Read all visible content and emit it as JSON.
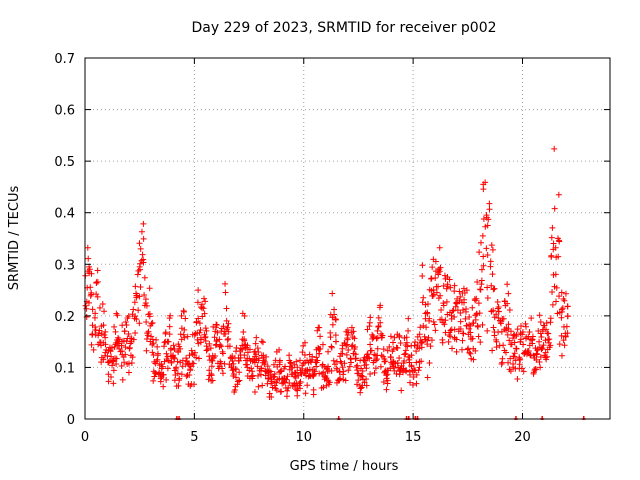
{
  "chart_data": {
    "type": "scatter",
    "title": "Day 229 of 2023, SRMTID for receiver p002",
    "xlabel": "GPS time / hours",
    "ylabel": "SRMTID / TECUs",
    "xlim": [
      0,
      24
    ],
    "ylim": [
      0,
      0.7
    ],
    "xticks": [
      0,
      5,
      10,
      15,
      20
    ],
    "yticks": [
      0,
      0.1,
      0.2,
      0.3,
      0.4,
      0.5,
      0.6,
      0.7
    ],
    "grid": true,
    "marker": "+",
    "color": "#ff0000",
    "x_step_hours": 0.1,
    "series": [
      {
        "name": "SRMTID p002",
        "values": [
          0.22,
          0.3,
          0.26,
          0.18,
          0.2,
          0.24,
          0.16,
          0.14,
          0.18,
          0.13,
          0.12,
          0.12,
          0.1,
          0.14,
          0.16,
          0.14,
          0.14,
          0.12,
          0.16,
          0.16,
          0.14,
          0.17,
          0.2,
          0.22,
          0.25,
          0.29,
          0.33,
          0.27,
          0.17,
          0.2,
          0.15,
          0.11,
          0.1,
          0.09,
          0.08,
          0.1,
          0.13,
          0.12,
          0.15,
          0.14,
          0.13,
          0.1,
          0.11,
          0.14,
          0.15,
          0.17,
          0.12,
          0.09,
          0.1,
          0.12,
          0.15,
          0.18,
          0.17,
          0.19,
          0.2,
          0.14,
          0.12,
          0.11,
          0.13,
          0.16,
          0.14,
          0.12,
          0.13,
          0.15,
          0.21,
          0.17,
          0.12,
          0.1,
          0.09,
          0.1,
          0.12,
          0.13,
          0.15,
          0.14,
          0.11,
          0.1,
          0.09,
          0.1,
          0.12,
          0.1,
          0.1,
          0.11,
          0.1,
          0.09,
          0.08,
          0.07,
          0.09,
          0.1,
          0.1,
          0.08,
          0.08,
          0.07,
          0.08,
          0.09,
          0.1,
          0.09,
          0.08,
          0.07,
          0.09,
          0.1,
          0.1,
          0.09,
          0.1,
          0.09,
          0.1,
          0.12,
          0.14,
          0.13,
          0.1,
          0.08,
          0.09,
          0.11,
          0.15,
          0.18,
          0.15,
          0.1,
          0.09,
          0.1,
          0.12,
          0.14,
          0.13,
          0.12,
          0.14,
          0.13,
          0.1,
          0.09,
          0.08,
          0.09,
          0.1,
          0.12,
          0.14,
          0.13,
          0.12,
          0.14,
          0.18,
          0.13,
          0.1,
          0.09,
          0.1,
          0.12,
          0.12,
          0.11,
          0.12,
          0.11,
          0.1,
          0.11,
          0.12,
          0.14,
          0.11,
          0.1,
          0.1,
          0.11,
          0.13,
          0.14,
          0.2,
          0.17,
          0.18,
          0.2,
          0.3,
          0.24,
          0.23,
          0.26,
          0.25,
          0.22,
          0.23,
          0.22,
          0.2,
          0.19,
          0.21,
          0.2,
          0.23,
          0.22,
          0.2,
          0.19,
          0.18,
          0.17,
          0.16,
          0.17,
          0.18,
          0.21,
          0.23,
          0.26,
          0.35,
          0.3,
          0.35,
          0.3,
          0.23,
          0.2,
          0.18,
          0.17,
          0.16,
          0.19,
          0.2,
          0.17,
          0.15,
          0.13,
          0.12,
          0.14,
          0.12,
          0.15,
          0.13,
          0.14,
          0.13,
          0.14,
          0.15,
          0.12,
          0.13,
          0.14,
          0.15,
          0.17,
          0.14,
          0.16,
          0.2,
          0.3,
          0.38,
          0.33,
          0.32,
          0.19,
          0.18,
          0.2,
          0.19
        ],
        "spread": [
          0.07,
          0.08,
          0.07,
          0.06,
          0.07,
          0.07,
          0.05,
          0.05,
          0.06,
          0.05,
          0.04,
          0.04,
          0.04,
          0.05,
          0.05,
          0.05,
          0.05,
          0.04,
          0.05,
          0.05,
          0.05,
          0.05,
          0.06,
          0.06,
          0.07,
          0.07,
          0.05,
          0.07,
          0.05,
          0.06,
          0.05,
          0.04,
          0.04,
          0.04,
          0.03,
          0.04,
          0.05,
          0.04,
          0.05,
          0.05,
          0.04,
          0.04,
          0.04,
          0.05,
          0.05,
          0.05,
          0.04,
          0.03,
          0.04,
          0.04,
          0.05,
          0.06,
          0.05,
          0.06,
          0.06,
          0.05,
          0.04,
          0.04,
          0.05,
          0.05,
          0.05,
          0.04,
          0.04,
          0.05,
          0.07,
          0.05,
          0.04,
          0.04,
          0.03,
          0.04,
          0.04,
          0.04,
          0.05,
          0.05,
          0.04,
          0.04,
          0.03,
          0.04,
          0.04,
          0.04,
          0.04,
          0.04,
          0.04,
          0.03,
          0.03,
          0.03,
          0.03,
          0.04,
          0.04,
          0.03,
          0.03,
          0.03,
          0.03,
          0.03,
          0.04,
          0.03,
          0.03,
          0.03,
          0.03,
          0.04,
          0.04,
          0.03,
          0.04,
          0.03,
          0.04,
          0.04,
          0.05,
          0.04,
          0.04,
          0.03,
          0.03,
          0.04,
          0.05,
          0.06,
          0.05,
          0.04,
          0.03,
          0.04,
          0.04,
          0.05,
          0.04,
          0.04,
          0.05,
          0.04,
          0.04,
          0.03,
          0.03,
          0.03,
          0.04,
          0.04,
          0.05,
          0.04,
          0.04,
          0.05,
          0.06,
          0.04,
          0.04,
          0.03,
          0.04,
          0.04,
          0.04,
          0.04,
          0.04,
          0.04,
          0.04,
          0.04,
          0.04,
          0.05,
          0.04,
          0.04,
          0.04,
          0.04,
          0.04,
          0.05,
          0.08,
          0.07,
          0.08,
          0.1,
          0.12,
          0.09,
          0.08,
          0.08,
          0.08,
          0.07,
          0.07,
          0.07,
          0.06,
          0.06,
          0.07,
          0.06,
          0.07,
          0.07,
          0.06,
          0.06,
          0.06,
          0.05,
          0.05,
          0.05,
          0.06,
          0.07,
          0.08,
          0.1,
          0.15,
          0.15,
          0.14,
          0.11,
          0.08,
          0.07,
          0.06,
          0.05,
          0.05,
          0.06,
          0.07,
          0.06,
          0.05,
          0.04,
          0.04,
          0.05,
          0.04,
          0.05,
          0.04,
          0.05,
          0.04,
          0.05,
          0.05,
          0.04,
          0.04,
          0.05,
          0.05,
          0.06,
          0.05,
          0.05,
          0.07,
          0.1,
          0.13,
          0.1,
          0.09,
          0.06,
          0.05,
          0.05,
          0.05
        ]
      }
    ],
    "points_per_step": 6,
    "bottom_markers_x": [
      4.2,
      4.3,
      11.6,
      14.7,
      14.8,
      15.1,
      15.2,
      19.7,
      20.9,
      22.8
    ]
  }
}
